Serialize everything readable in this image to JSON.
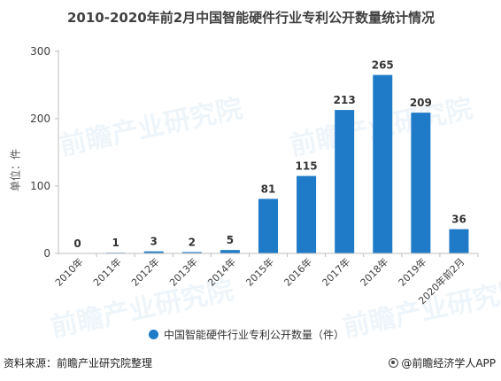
{
  "title": "2010-2020年前2月中国智能硬件行业专利公开数量统计情况",
  "ylabel": "单位：件",
  "legend": "中国智能硬件行业专利公开数量（件）",
  "source": "资料来源：前瞻产业研究院整理",
  "brand": "@前瞻经济学人APP",
  "watermark": "前瞻产业研究院",
  "colors": {
    "bar": "#1f7bc8",
    "axis": "#bfbfbf",
    "text": "#333333"
  },
  "chart_data": {
    "type": "bar",
    "categories": [
      "2010年",
      "2011年",
      "2012年",
      "2013年",
      "2014年",
      "2015年",
      "2016年",
      "2017年",
      "2018年",
      "2019年",
      "2020年前2月"
    ],
    "series": [
      {
        "name": "中国智能硬件行业专利公开数量（件）",
        "values": [
          0,
          1,
          3,
          2,
          5,
          81,
          115,
          213,
          265,
          209,
          36
        ]
      }
    ],
    "yticks": [
      0,
      100,
      200,
      300
    ],
    "ylim": [
      0,
      300
    ],
    "grid": false,
    "legend_position": "bottom"
  }
}
